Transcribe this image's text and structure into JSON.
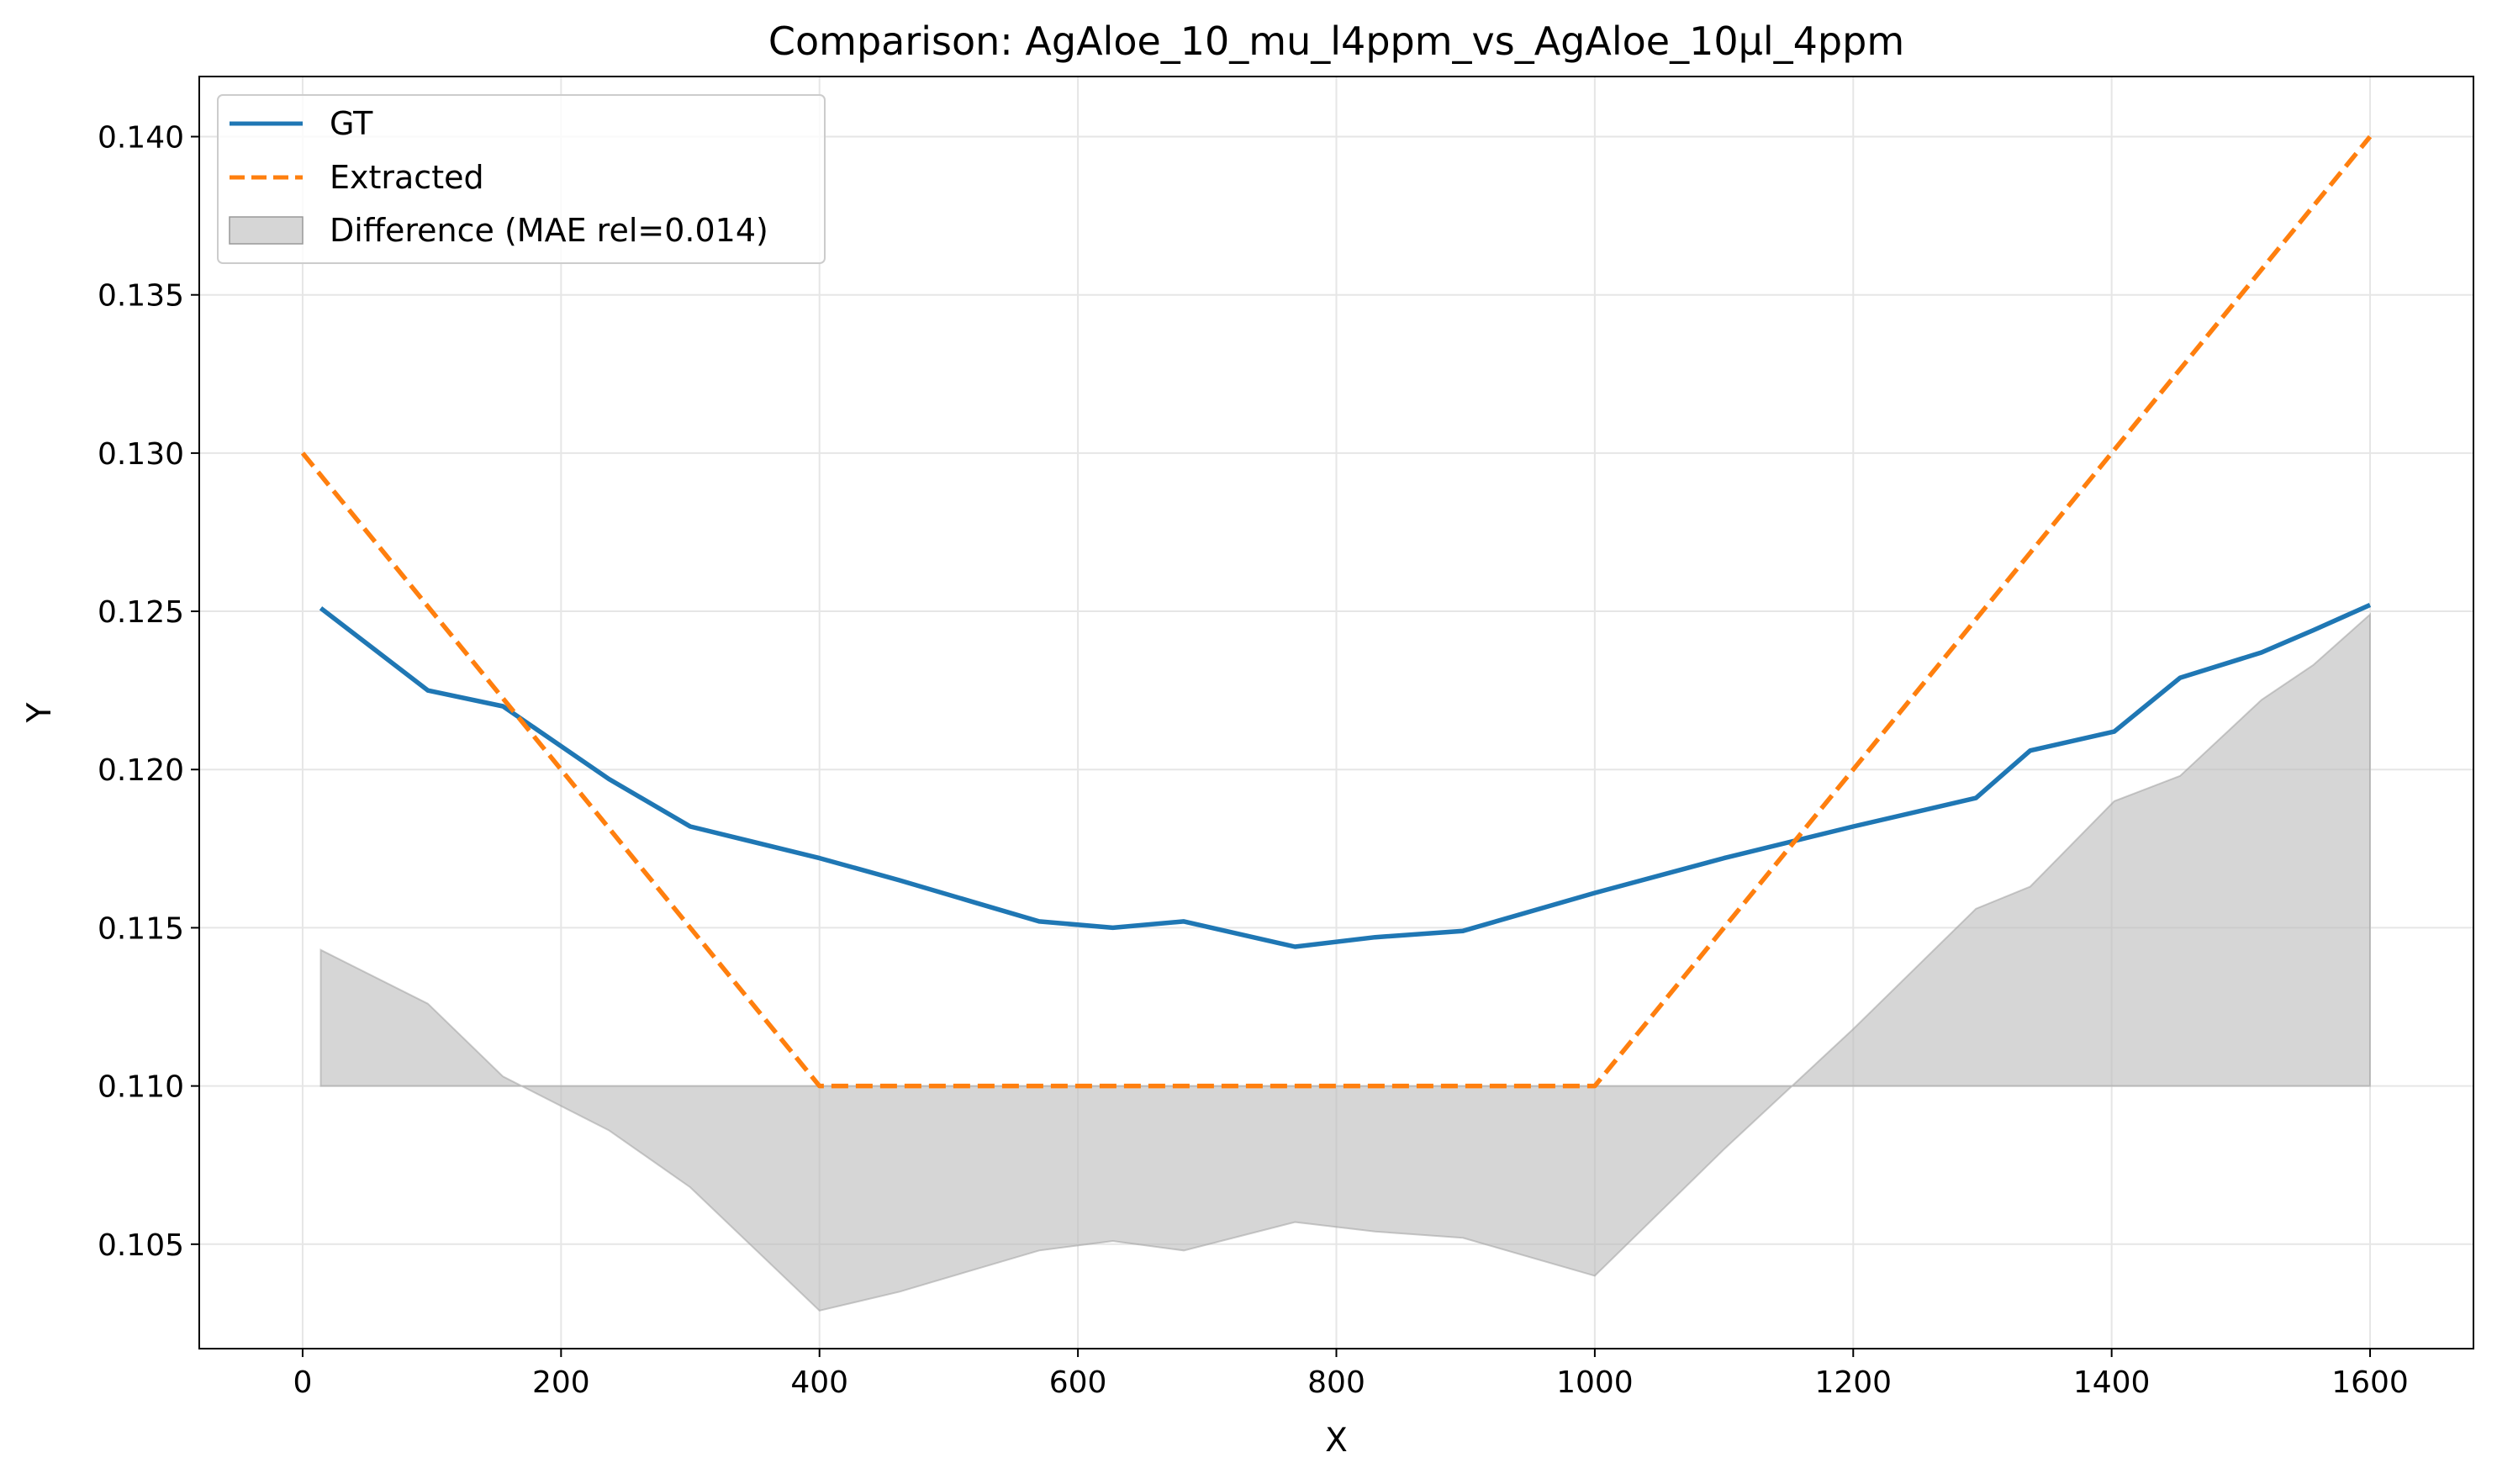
{
  "chart_data": {
    "type": "line",
    "title": "Comparison: AgAloe_10_mu_l4ppm_vs_AgAloe_10µl_4ppm",
    "xlabel": "X",
    "ylabel": "Y",
    "xlim": [
      -80,
      1680
    ],
    "ylim": [
      0.1017,
      0.1419
    ],
    "xticks": [
      0,
      200,
      400,
      600,
      800,
      1000,
      1200,
      1400,
      1600
    ],
    "yticks": [
      0.105,
      0.11,
      0.115,
      0.12,
      0.125,
      0.13,
      0.135,
      0.14
    ],
    "ytick_labels": [
      "0.105",
      "0.110",
      "0.115",
      "0.120",
      "0.125",
      "0.130",
      "0.135",
      "0.140"
    ],
    "grid": true,
    "legend_position": "top-left",
    "series": [
      {
        "name": "GT",
        "color": "#1f77b4",
        "style": "solid",
        "x": [
          14,
          97,
          155,
          237,
          300,
          400,
          462,
          520,
          570,
          627,
          682,
          768,
          830,
          898,
          1000,
          1100,
          1200,
          1295,
          1337,
          1402,
          1453,
          1516,
          1556,
          1600
        ],
        "y": [
          0.1251,
          0.1225,
          0.122,
          0.1197,
          0.1182,
          0.1172,
          0.1165,
          0.1158,
          0.1152,
          0.115,
          0.1152,
          0.1144,
          0.1147,
          0.1149,
          0.1161,
          0.1172,
          0.1182,
          0.1191,
          0.1206,
          0.1212,
          0.1229,
          0.1237,
          0.1244,
          0.1252
        ]
      },
      {
        "name": "Extracted",
        "color": "#ff7f0e",
        "style": "dashed",
        "x": [
          0,
          400,
          1000,
          1600
        ],
        "y": [
          0.13,
          0.11,
          0.11,
          0.14
        ]
      }
    ],
    "difference": {
      "name": "Difference (MAE rel=0.014)",
      "color": "#bbbbbb",
      "baseline": 0.11,
      "x": [
        14,
        97,
        155,
        237,
        300,
        400,
        462,
        520,
        570,
        627,
        682,
        768,
        830,
        898,
        1000,
        1100,
        1200,
        1295,
        1337,
        1402,
        1453,
        1516,
        1556,
        1600
      ],
      "y": [
        0.1143,
        0.1126,
        0.1103,
        0.1086,
        0.1068,
        0.1029,
        0.1035,
        0.1042,
        0.1048,
        0.1051,
        0.1048,
        0.1057,
        0.1054,
        0.1052,
        0.104,
        0.108,
        0.1118,
        0.1156,
        0.1163,
        0.119,
        0.1198,
        0.1222,
        0.1233,
        0.1249
      ]
    }
  }
}
